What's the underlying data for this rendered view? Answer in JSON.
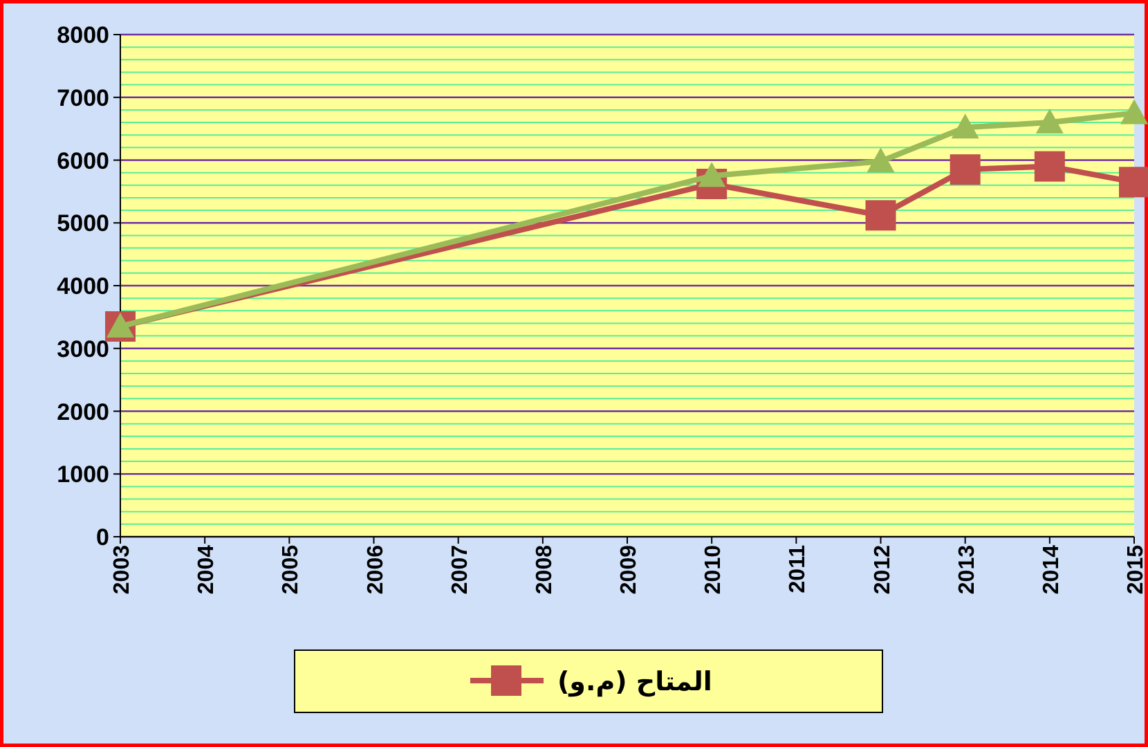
{
  "chart_data": {
    "type": "line",
    "x": [
      2003,
      2010,
      2012,
      2013,
      2014,
      2015
    ],
    "series": [
      {
        "name": "المتاح (م.و)",
        "color": "#c0504d",
        "marker": "square",
        "values": [
          3350,
          5620,
          5120,
          5850,
          5900,
          5650
        ]
      },
      {
        "color": "#9bbb59",
        "marker": "triangle",
        "values": [
          3350,
          5750,
          5980,
          6520,
          6600,
          6750
        ]
      }
    ],
    "xlim": [
      2003,
      2015
    ],
    "xticks": [
      2003,
      2004,
      2005,
      2006,
      2007,
      2008,
      2009,
      2010,
      2011,
      2012,
      2013,
      2014,
      2015
    ],
    "ylim": [
      0,
      8000
    ],
    "yticks": [
      0,
      {
        "value": 200,
        "label": null
      },
      {
        "value": 400,
        "label": null
      },
      {
        "value": 600,
        "label": null
      },
      {
        "value": 800,
        "label": null
      },
      1000,
      {
        "value": 1200,
        "label": null
      },
      {
        "value": 1400,
        "label": null
      },
      {
        "value": 1600,
        "label": null
      },
      {
        "value": 1800,
        "label": null
      },
      2000,
      {
        "value": 2200,
        "label": null
      },
      {
        "value": 2400,
        "label": null
      },
      {
        "value": 2600,
        "label": null
      },
      {
        "value": 2800,
        "label": null
      },
      3000,
      {
        "value": 3200,
        "label": null
      },
      {
        "value": 3400,
        "label": null
      },
      {
        "value": 3600,
        "label": null
      },
      {
        "value": 3800,
        "label": null
      },
      4000,
      {
        "value": 4200,
        "label": null
      },
      {
        "value": 4400,
        "label": null
      },
      {
        "value": 4600,
        "label": null
      },
      {
        "value": 4800,
        "label": null
      },
      5000,
      {
        "value": 5200,
        "label": null
      },
      {
        "value": 5400,
        "label": null
      },
      {
        "value": 5600,
        "label": null
      },
      {
        "value": 5800,
        "label": null
      },
      6000,
      {
        "value": 6200,
        "label": null
      },
      {
        "value": 6400,
        "label": null
      },
      {
        "value": 6600,
        "label": null
      },
      {
        "value": 6800,
        "label": null
      },
      7000,
      {
        "value": 7200,
        "label": null
      },
      {
        "value": 7400,
        "label": null
      },
      {
        "value": 7600,
        "label": null
      },
      {
        "value": 7800,
        "label": null
      },
      8000
    ],
    "grid": "y",
    "legend": "bottom"
  }
}
